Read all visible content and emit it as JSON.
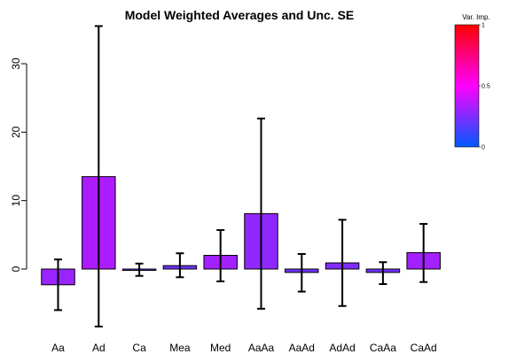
{
  "chart_data": {
    "type": "bar",
    "title": "Model Weighted Averages and Unc. SE",
    "xlabel": "",
    "ylabel": "",
    "ylim": [
      -9.5,
      36
    ],
    "yticks": [
      0,
      10,
      20,
      30
    ],
    "categories": [
      "Aa",
      "Ad",
      "Ca",
      "Mea",
      "Med",
      "AaAa",
      "AaAd",
      "AdAd",
      "CaAa",
      "CaAd"
    ],
    "values": [
      -2.3,
      13.5,
      -0.1,
      0.5,
      2.0,
      8.1,
      -0.5,
      0.9,
      -0.5,
      2.4
    ],
    "error_low": [
      -6.0,
      -8.4,
      -1.0,
      -1.2,
      -1.8,
      -5.8,
      -3.3,
      -5.4,
      -2.2,
      -1.9
    ],
    "error_high": [
      1.4,
      35.5,
      0.8,
      2.3,
      5.7,
      22.0,
      2.2,
      7.2,
      1.0,
      6.6
    ],
    "variable_importance": [
      0.3,
      0.34,
      0.2,
      0.22,
      0.32,
      0.28,
      0.22,
      0.25,
      0.22,
      0.32
    ],
    "legend": {
      "title": "Var. Imp.",
      "ticks": [
        "0",
        "0.5",
        "1"
      ],
      "colors": [
        "#0059ff",
        "#ff00ff",
        "#ff0000"
      ]
    },
    "grid": false
  }
}
